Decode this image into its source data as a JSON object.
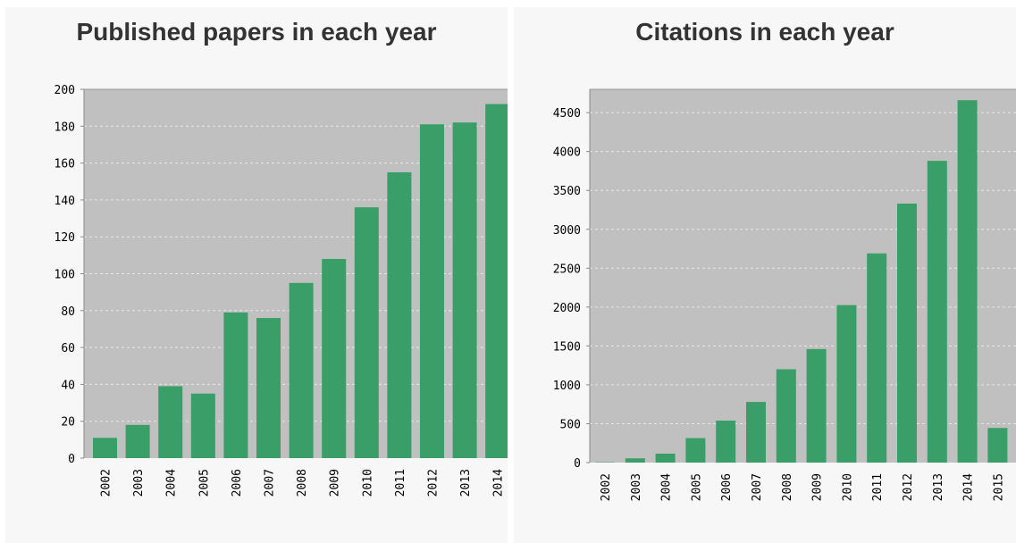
{
  "colors": {
    "bar": "#3a9e68",
    "plot_bg": "#c0c0c0",
    "grid": "#e8e8e8",
    "panel_bg": "#f7f7f7"
  },
  "chart_data": [
    {
      "type": "bar",
      "title": "Published papers in each year",
      "categories": [
        "2002",
        "2003",
        "2004",
        "2005",
        "2006",
        "2007",
        "2008",
        "2009",
        "2010",
        "2011",
        "2012",
        "2013",
        "2014"
      ],
      "values": [
        11,
        18,
        39,
        35,
        79,
        76,
        95,
        108,
        136,
        155,
        181,
        182,
        192
      ],
      "ylim": [
        0,
        200
      ],
      "yticks": [
        0,
        20,
        40,
        60,
        80,
        100,
        120,
        140,
        160,
        180,
        200
      ],
      "xlabel": "",
      "ylabel": "",
      "grid": true
    },
    {
      "type": "bar",
      "title": "Citations in each year",
      "categories": [
        "2002",
        "2003",
        "2004",
        "2005",
        "2006",
        "2007",
        "2008",
        "2009",
        "2010",
        "2011",
        "2012",
        "2013",
        "2014",
        "2015"
      ],
      "values": [
        5,
        55,
        115,
        315,
        540,
        780,
        1200,
        1460,
        2025,
        2690,
        3330,
        3880,
        4660,
        445
      ],
      "ylim": [
        0,
        4800
      ],
      "yticks": [
        0,
        500,
        1000,
        1500,
        2000,
        2500,
        3000,
        3500,
        4000,
        4500
      ],
      "xlabel": "",
      "ylabel": "",
      "grid": true
    }
  ]
}
